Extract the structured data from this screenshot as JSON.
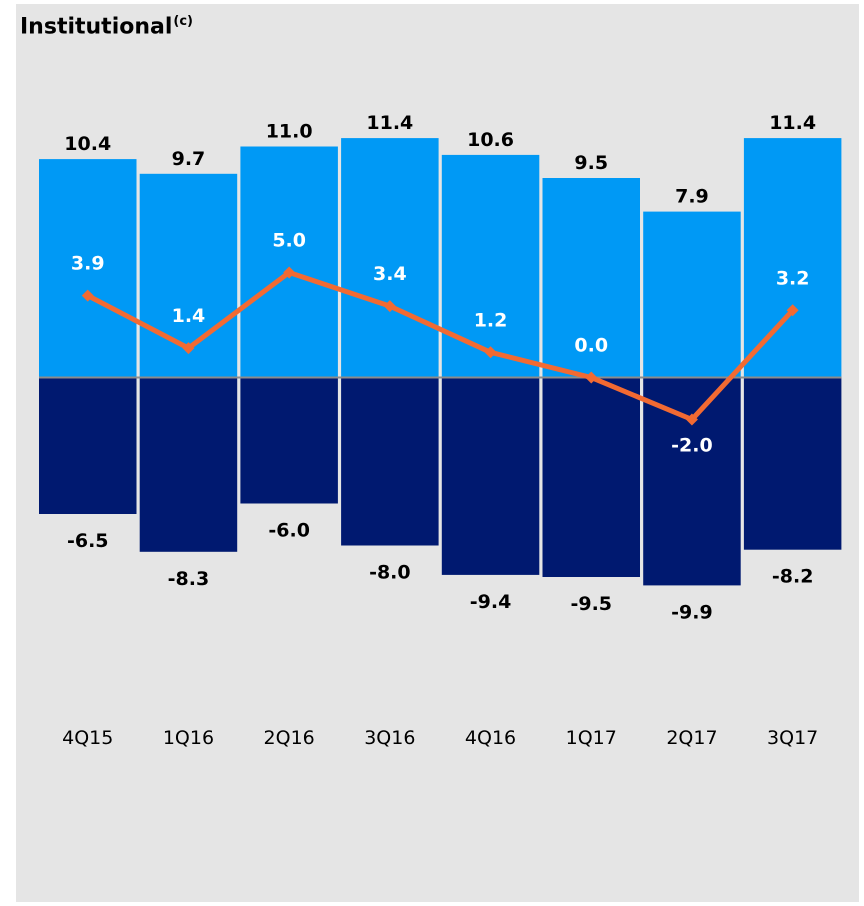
{
  "title": "Institutional",
  "title_note": "(c)",
  "colors": {
    "positive_bar": "#0099f5",
    "negative_bar": "#001970",
    "line": "#f26a32",
    "zero_line": "#8c8c8c",
    "background": "#e5e5e5"
  },
  "chart_data": {
    "type": "bar",
    "categories": [
      "4Q15",
      "1Q16",
      "2Q16",
      "3Q16",
      "4Q16",
      "1Q17",
      "2Q17",
      "3Q17"
    ],
    "series": [
      {
        "values": [
          10.4,
          9.7,
          11.0,
          11.4,
          10.6,
          9.5,
          7.9,
          11.4
        ]
      },
      {
        "values": [
          -6.5,
          -8.3,
          -6.0,
          -8.0,
          -9.4,
          -9.5,
          -9.9,
          -8.2
        ]
      },
      {
        "type": "line",
        "values": [
          3.9,
          1.4,
          5.0,
          3.4,
          1.2,
          0.0,
          -2.0,
          3.2
        ]
      }
    ],
    "title": "Institutional",
    "xlabel": "",
    "ylabel": "",
    "grid": false,
    "legend": "none"
  }
}
